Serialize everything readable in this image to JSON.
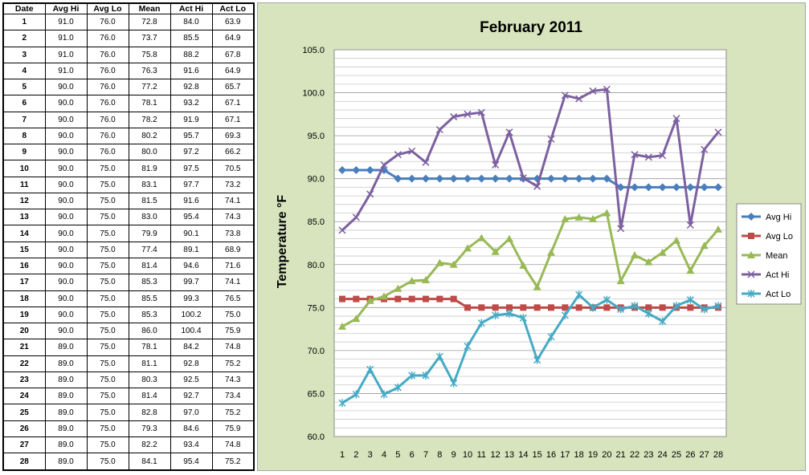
{
  "table": {
    "headers": [
      "Date",
      "Avg Hi",
      "Avg Lo",
      "Mean",
      "Act Hi",
      "Act Lo"
    ],
    "rows": [
      [
        "1",
        "91.0",
        "76.0",
        "72.8",
        "84.0",
        "63.9"
      ],
      [
        "2",
        "91.0",
        "76.0",
        "73.7",
        "85.5",
        "64.9"
      ],
      [
        "3",
        "91.0",
        "76.0",
        "75.8",
        "88.2",
        "67.8"
      ],
      [
        "4",
        "91.0",
        "76.0",
        "76.3",
        "91.6",
        "64.9"
      ],
      [
        "5",
        "90.0",
        "76.0",
        "77.2",
        "92.8",
        "65.7"
      ],
      [
        "6",
        "90.0",
        "76.0",
        "78.1",
        "93.2",
        "67.1"
      ],
      [
        "7",
        "90.0",
        "76.0",
        "78.2",
        "91.9",
        "67.1"
      ],
      [
        "8",
        "90.0",
        "76.0",
        "80.2",
        "95.7",
        "69.3"
      ],
      [
        "9",
        "90.0",
        "76.0",
        "80.0",
        "97.2",
        "66.2"
      ],
      [
        "10",
        "90.0",
        "75.0",
        "81.9",
        "97.5",
        "70.5"
      ],
      [
        "11",
        "90.0",
        "75.0",
        "83.1",
        "97.7",
        "73.2"
      ],
      [
        "12",
        "90.0",
        "75.0",
        "81.5",
        "91.6",
        "74.1"
      ],
      [
        "13",
        "90.0",
        "75.0",
        "83.0",
        "95.4",
        "74.3"
      ],
      [
        "14",
        "90.0",
        "75.0",
        "79.9",
        "90.1",
        "73.8"
      ],
      [
        "15",
        "90.0",
        "75.0",
        "77.4",
        "89.1",
        "68.9"
      ],
      [
        "16",
        "90.0",
        "75.0",
        "81.4",
        "94.6",
        "71.6"
      ],
      [
        "17",
        "90.0",
        "75.0",
        "85.3",
        "99.7",
        "74.1"
      ],
      [
        "18",
        "90.0",
        "75.0",
        "85.5",
        "99.3",
        "76.5"
      ],
      [
        "19",
        "90.0",
        "75.0",
        "85.3",
        "100.2",
        "75.0"
      ],
      [
        "20",
        "90.0",
        "75.0",
        "86.0",
        "100.4",
        "75.9"
      ],
      [
        "21",
        "89.0",
        "75.0",
        "78.1",
        "84.2",
        "74.8"
      ],
      [
        "22",
        "89.0",
        "75.0",
        "81.1",
        "92.8",
        "75.2"
      ],
      [
        "23",
        "89.0",
        "75.0",
        "80.3",
        "92.5",
        "74.3"
      ],
      [
        "24",
        "89.0",
        "75.0",
        "81.4",
        "92.7",
        "73.4"
      ],
      [
        "25",
        "89.0",
        "75.0",
        "82.8",
        "97.0",
        "75.2"
      ],
      [
        "26",
        "89.0",
        "75.0",
        "79.3",
        "84.6",
        "75.9"
      ],
      [
        "27",
        "89.0",
        "75.0",
        "82.2",
        "93.4",
        "74.8"
      ],
      [
        "28",
        "89.0",
        "75.0",
        "84.1",
        "95.4",
        "75.2"
      ]
    ]
  },
  "chart_data": {
    "type": "line",
    "title": "February 2011",
    "xlabel": "",
    "ylabel": "Temperature °F",
    "x": [
      1,
      2,
      3,
      4,
      5,
      6,
      7,
      8,
      9,
      10,
      11,
      12,
      13,
      14,
      15,
      16,
      17,
      18,
      19,
      20,
      21,
      22,
      23,
      24,
      25,
      26,
      27,
      28
    ],
    "ylim": [
      60,
      105
    ],
    "yticks": [
      "60.0",
      "65.0",
      "70.0",
      "75.0",
      "80.0",
      "85.0",
      "90.0",
      "95.0",
      "100.0",
      "105.0"
    ],
    "grid": true,
    "legend_position": "right",
    "series": [
      {
        "name": "Avg Hi",
        "color": "#4a7ebb",
        "marker": "diamond",
        "values": [
          91,
          91,
          91,
          91,
          90,
          90,
          90,
          90,
          90,
          90,
          90,
          90,
          90,
          90,
          90,
          90,
          90,
          90,
          90,
          90,
          89,
          89,
          89,
          89,
          89,
          89,
          89,
          89
        ]
      },
      {
        "name": "Avg Lo",
        "color": "#be4b48",
        "marker": "square",
        "values": [
          76,
          76,
          76,
          76,
          76,
          76,
          76,
          76,
          76,
          75,
          75,
          75,
          75,
          75,
          75,
          75,
          75,
          75,
          75,
          75,
          75,
          75,
          75,
          75,
          75,
          75,
          75,
          75
        ]
      },
      {
        "name": "Mean",
        "color": "#98b954",
        "marker": "triangle",
        "values": [
          72.8,
          73.7,
          75.8,
          76.3,
          77.2,
          78.1,
          78.2,
          80.2,
          80.0,
          81.9,
          83.1,
          81.5,
          83.0,
          79.9,
          77.4,
          81.4,
          85.3,
          85.5,
          85.3,
          86.0,
          78.1,
          81.1,
          80.3,
          81.4,
          82.8,
          79.3,
          82.2,
          84.1
        ]
      },
      {
        "name": "Act Hi",
        "color": "#7d60a0",
        "marker": "x",
        "values": [
          84.0,
          85.5,
          88.2,
          91.6,
          92.8,
          93.2,
          91.9,
          95.7,
          97.2,
          97.5,
          97.7,
          91.6,
          95.4,
          90.1,
          89.1,
          94.6,
          99.7,
          99.3,
          100.2,
          100.4,
          84.2,
          92.8,
          92.5,
          92.7,
          97.0,
          84.6,
          93.4,
          95.4
        ]
      },
      {
        "name": "Act Lo",
        "color": "#46aac5",
        "marker": "star",
        "values": [
          63.9,
          64.9,
          67.8,
          64.9,
          65.7,
          67.1,
          67.1,
          69.3,
          66.2,
          70.5,
          73.2,
          74.1,
          74.3,
          73.8,
          68.9,
          71.6,
          74.1,
          76.5,
          75.0,
          75.9,
          74.8,
          75.2,
          74.3,
          73.4,
          75.2,
          75.9,
          74.8,
          75.2
        ]
      }
    ]
  }
}
